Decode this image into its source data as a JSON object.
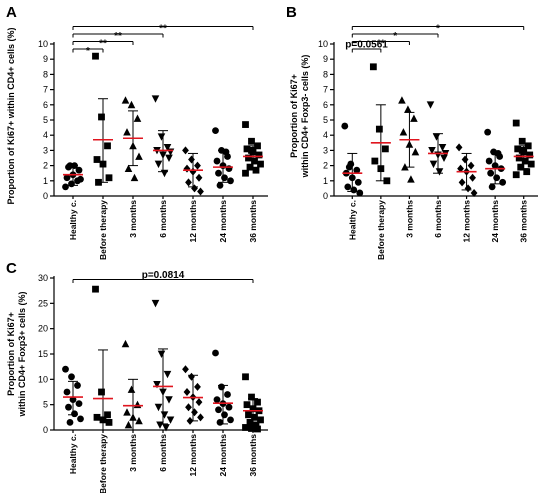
{
  "chart_data": [
    {
      "type": "scatter",
      "panel": "A",
      "ylabel": "Proportion of Ki67+ within CD4+ cells (%)",
      "ylabel_lines": [
        "Proportion of Ki67+ within CD4+ cells (%)"
      ],
      "ylim": [
        0,
        10
      ],
      "yticks": [
        0,
        1,
        2,
        3,
        4,
        5,
        6,
        7,
        8,
        9,
        10
      ],
      "categories": [
        "Healthy c.",
        "Before therapy",
        "3 months",
        "6 months",
        "12 months",
        "24 months",
        "36 months"
      ],
      "markers": [
        "circle",
        "square",
        "triangle-up",
        "triangle-down",
        "diamond",
        "circle",
        "square"
      ],
      "mean_color": "#e0151f",
      "groups": [
        {
          "mean": 1.4,
          "sd": [
            0.7,
            2.0
          ],
          "points": [
            0.6,
            0.8,
            1.0,
            1.2,
            1.4,
            1.7,
            1.9,
            2.0,
            1.1,
            2.0
          ]
        },
        {
          "mean": 3.7,
          "sd": [
            0.9,
            6.4
          ],
          "points": [
            9.2,
            5.2,
            3.3,
            2.4,
            2.1,
            1.2,
            0.9
          ]
        },
        {
          "mean": 3.8,
          "sd": [
            2.0,
            5.6
          ],
          "points": [
            6.3,
            6.0,
            5.1,
            4.2,
            3.3,
            2.6,
            1.8,
            1.2
          ]
        },
        {
          "mean": 3.0,
          "sd": [
            1.6,
            4.3
          ],
          "points": [
            6.4,
            3.9,
            3.2,
            3.0,
            2.7,
            2.5,
            2.1,
            1.5,
            2.9
          ]
        },
        {
          "mean": 1.7,
          "sd": [
            0.6,
            2.8
          ],
          "points": [
            3.0,
            2.4,
            2.0,
            1.8,
            1.6,
            1.2,
            0.9,
            0.5,
            0.3
          ]
        },
        {
          "mean": 1.9,
          "sd": [
            0.9,
            3.0
          ],
          "points": [
            4.3,
            3.0,
            2.6,
            2.3,
            2.0,
            1.8,
            1.5,
            1.2,
            1.0,
            0.7,
            2.9
          ]
        },
        {
          "mean": 2.6,
          "sd": [
            1.8,
            3.3
          ],
          "points": [
            4.7,
            3.6,
            3.3,
            3.1,
            2.9,
            2.7,
            2.5,
            2.3,
            2.1,
            1.9,
            1.7,
            1.5,
            3.0
          ]
        }
      ],
      "brackets": [
        {
          "to": 1,
          "label": "*"
        },
        {
          "to": 2,
          "label": "**"
        },
        {
          "to": 3,
          "label": "**"
        },
        {
          "to": 6,
          "label": "**"
        }
      ]
    },
    {
      "type": "scatter",
      "panel": "B",
      "ylabel": "Proportion of Ki67+ within CD4+ Foxp3- cells (%)",
      "ylabel_lines": [
        "Proportion of Ki67+",
        "within CD4+ Foxp3- cells (%)"
      ],
      "ylim": [
        0,
        10
      ],
      "yticks": [
        0,
        1,
        2,
        3,
        4,
        5,
        6,
        7,
        8,
        9,
        10
      ],
      "categories": [
        "Healthy c.",
        "Before therapy",
        "3 months",
        "6 months",
        "12 months",
        "24 months",
        "36 months"
      ],
      "markers": [
        "circle",
        "square",
        "triangle-up",
        "triangle-down",
        "diamond",
        "circle",
        "square"
      ],
      "mean_color": "#e0151f",
      "groups": [
        {
          "mean": 1.5,
          "sd": [
            0.3,
            2.8
          ],
          "points": [
            4.6,
            2.1,
            1.7,
            1.5,
            1.2,
            0.9,
            0.6,
            0.4,
            0.2,
            1.9
          ]
        },
        {
          "mean": 3.5,
          "sd": [
            1.0,
            6.0
          ],
          "points": [
            8.5,
            4.4,
            3.1,
            2.3,
            1.8,
            1.0
          ]
        },
        {
          "mean": 3.7,
          "sd": [
            1.9,
            5.5
          ],
          "points": [
            6.3,
            5.7,
            5.1,
            4.2,
            3.4,
            2.9,
            1.9,
            1.1
          ]
        },
        {
          "mean": 2.8,
          "sd": [
            1.5,
            4.1
          ],
          "points": [
            6.0,
            3.9,
            3.2,
            3.0,
            2.7,
            2.5,
            2.1,
            1.6,
            2.8
          ]
        },
        {
          "mean": 1.6,
          "sd": [
            0.4,
            2.8
          ],
          "points": [
            3.2,
            2.4,
            2.0,
            1.8,
            1.6,
            1.2,
            0.9,
            0.5,
            0.2
          ]
        },
        {
          "mean": 1.8,
          "sd": [
            0.8,
            2.9
          ],
          "points": [
            4.2,
            2.9,
            2.6,
            2.3,
            2.0,
            1.8,
            1.5,
            1.2,
            0.9,
            0.6,
            2.8
          ]
        },
        {
          "mean": 2.6,
          "sd": [
            1.8,
            3.3
          ],
          "points": [
            4.8,
            3.6,
            3.3,
            3.1,
            2.9,
            2.7,
            2.5,
            2.3,
            2.1,
            1.9,
            1.6,
            1.4,
            3.0
          ]
        }
      ],
      "brackets": [
        {
          "to": 1,
          "label": "p=0.0561"
        },
        {
          "to": 2,
          "label": "**"
        },
        {
          "to": 3,
          "label": "*"
        },
        {
          "to": 6,
          "label": "*"
        }
      ]
    },
    {
      "type": "scatter",
      "panel": "C",
      "ylabel": "Proportion of Ki67+ within CD4+ Foxp3+ cells (%)",
      "ylabel_lines": [
        "Proportion of Ki67+",
        "within CD4+ Foxp3+ cells (%)"
      ],
      "ylim": [
        0,
        30
      ],
      "yticks": [
        0,
        5,
        10,
        15,
        20,
        25,
        30
      ],
      "categories": [
        "Healthy c.",
        "Before therapy",
        "3 months",
        "6 months",
        "12 months",
        "24 months",
        "36 months"
      ],
      "markers": [
        "circle",
        "square",
        "triangle-up",
        "triangle-down",
        "diamond",
        "circle",
        "square"
      ],
      "mean_color": "#e0151f",
      "groups": [
        {
          "mean": 6.5,
          "sd": [
            3.0,
            9.6
          ],
          "points": [
            12.0,
            10.5,
            8.8,
            7.5,
            6.0,
            5.2,
            4.5,
            3.2,
            2.2,
            1.5
          ]
        },
        {
          "mean": 6.2,
          "sd": [
            0.0,
            15.8
          ],
          "points": [
            27.8,
            7.5,
            3.0,
            2.5,
            2.0,
            1.5
          ]
        },
        {
          "mean": 4.8,
          "sd": [
            0.0,
            10.0
          ],
          "points": [
            17.0,
            8.0,
            5.0,
            3.5,
            2.5,
            1.8,
            1.0
          ]
        },
        {
          "mean": 8.6,
          "sd": [
            1.2,
            16.0
          ],
          "points": [
            25.0,
            15.0,
            11.0,
            9.0,
            7.5,
            6.0,
            4.5,
            3.0,
            2.0,
            1.0,
            0.5
          ]
        },
        {
          "mean": 6.4,
          "sd": [
            1.8,
            10.8
          ],
          "points": [
            12.0,
            10.5,
            8.5,
            7.5,
            6.5,
            5.5,
            4.5,
            3.5,
            2.5,
            1.8
          ]
        },
        {
          "mean": 5.3,
          "sd": [
            1.2,
            8.8
          ],
          "points": [
            15.2,
            8.5,
            7.0,
            6.0,
            5.2,
            4.5,
            4.0,
            3.0,
            2.0,
            1.5
          ]
        },
        {
          "mean": 3.8,
          "sd": [
            1.2,
            6.2
          ],
          "points": [
            10.5,
            6.5,
            5.5,
            5.0,
            4.2,
            3.8,
            3.0,
            2.5,
            2.0,
            1.5,
            1.0,
            0.5,
            0.3,
            0.2
          ]
        }
      ],
      "brackets": [
        {
          "to": 6,
          "label": "p=0.0814"
        }
      ]
    }
  ]
}
